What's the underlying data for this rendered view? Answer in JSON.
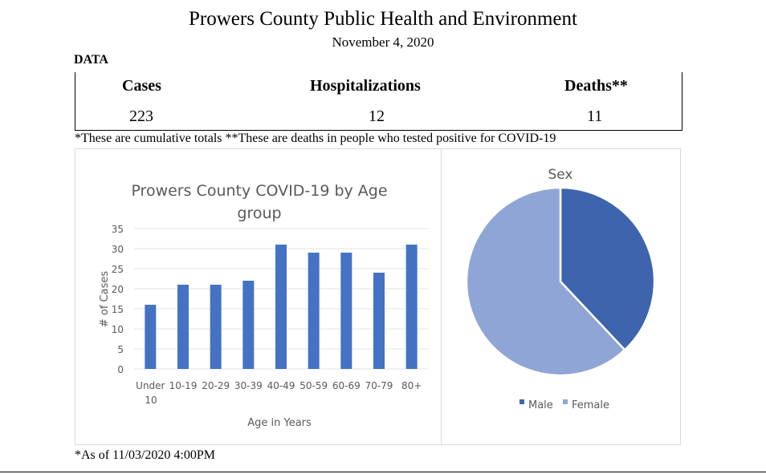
{
  "header": {
    "title": "Prowers County Public Health and Environment",
    "date": "November 4, 2020"
  },
  "data_label": "DATA",
  "table": {
    "headers": [
      "Cases",
      "Hospitalizations",
      "Deaths**"
    ],
    "values": [
      "223",
      "12",
      "11"
    ]
  },
  "note": "*These are cumulative totals **These are deaths in people who tested positive for COVID-19",
  "footnote": "*As of 11/03/2020 4:00PM",
  "chart_data": [
    {
      "type": "bar",
      "title": "Prowers County COVID-19 by Age group",
      "xlabel": "Age in Years",
      "ylabel": "# of Cases",
      "categories": [
        "Under 10",
        "10-19",
        "20-29",
        "30-39",
        "40-49",
        "50-59",
        "60-69",
        "70-79",
        "80+"
      ],
      "values": [
        16,
        21,
        21,
        22,
        31,
        29,
        29,
        24,
        31
      ],
      "ylim": [
        0,
        35
      ],
      "yticks": [
        0,
        5,
        10,
        15,
        20,
        25,
        30,
        35
      ],
      "grid": true,
      "color": "#4472c4"
    },
    {
      "type": "pie",
      "title": "Sex",
      "labels": [
        "Male",
        "Female"
      ],
      "values_percent": [
        38,
        62
      ],
      "colors": [
        "#3d64ad",
        "#8fa5d5"
      ],
      "legend": "bottom"
    }
  ]
}
